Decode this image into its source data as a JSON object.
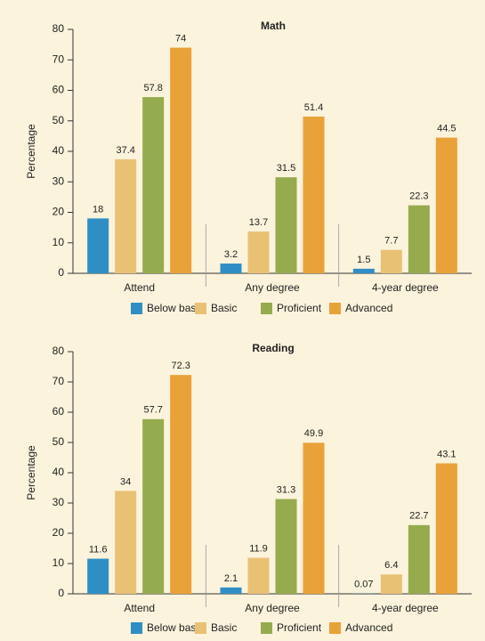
{
  "chart_data": [
    {
      "type": "bar",
      "title": "Math",
      "y_label": "Percentage",
      "categories": [
        "Attend",
        "Any degree",
        "4-year degree"
      ],
      "series": [
        {
          "name": "Below basic",
          "color": "#2f8fc4",
          "values": [
            18,
            3.2,
            1.5
          ]
        },
        {
          "name": "Basic",
          "color": "#e9c175",
          "values": [
            37.4,
            13.7,
            7.7
          ]
        },
        {
          "name": "Proficient",
          "color": "#95ab4e",
          "values": [
            57.8,
            31.5,
            22.3
          ]
        },
        {
          "name": "Advanced",
          "color": "#e9a23a",
          "values": [
            74,
            51.4,
            44.5
          ]
        }
      ],
      "ylim": [
        0,
        80
      ],
      "yticks": [
        0,
        10,
        20,
        30,
        40,
        50,
        60,
        70,
        80
      ]
    },
    {
      "type": "bar",
      "title": "Reading",
      "y_label": "Percentage",
      "categories": [
        "Attend",
        "Any degree",
        "4-year degree"
      ],
      "series": [
        {
          "name": "Below basic",
          "color": "#2f8fc4",
          "values": [
            11.6,
            2.1,
            0.07
          ]
        },
        {
          "name": "Basic",
          "color": "#e9c175",
          "values": [
            34,
            11.9,
            6.4
          ]
        },
        {
          "name": "Proficient",
          "color": "#95ab4e",
          "values": [
            57.7,
            31.3,
            22.7
          ]
        },
        {
          "name": "Advanced",
          "color": "#e9a23a",
          "values": [
            72.3,
            49.9,
            43.1
          ]
        }
      ],
      "ylim": [
        0,
        80
      ],
      "yticks": [
        0,
        10,
        20,
        30,
        40,
        50,
        60,
        70,
        80
      ]
    }
  ]
}
